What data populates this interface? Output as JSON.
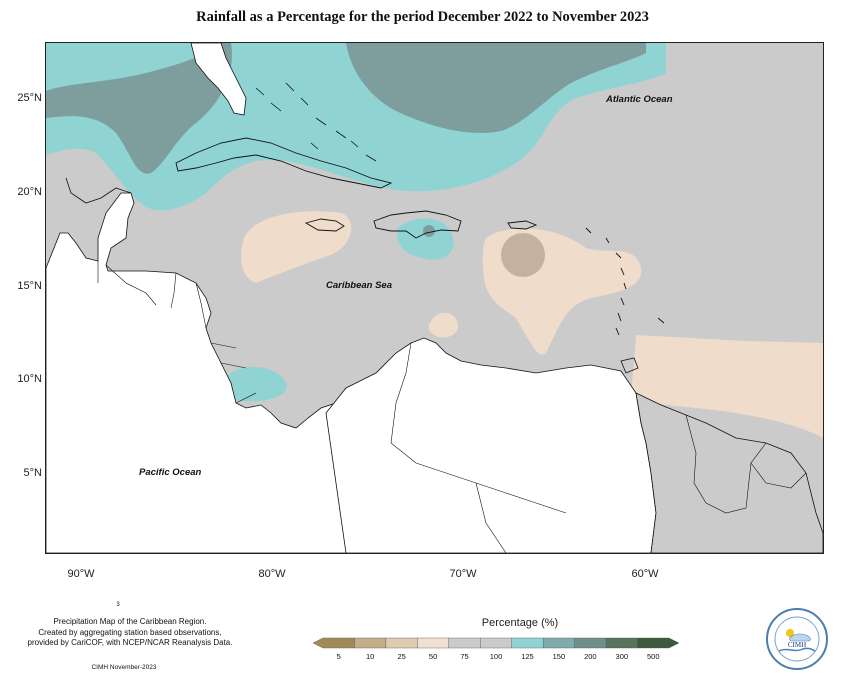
{
  "title": "Rainfall as a Percentage for the period December 2022 to November 2023",
  "map": {
    "lat_ticks": [
      "25°N",
      "20°N",
      "15°N",
      "10°N",
      "5°N"
    ],
    "lon_ticks": [
      "90°W",
      "80°W",
      "70°W",
      "60°W"
    ],
    "labels": {
      "atlantic": "Atlantic Ocean",
      "caribbean": "Caribbean Sea",
      "pacific": "Pacific Ocean"
    },
    "colors": {
      "background_normal": "#cbcbcb",
      "above_125": "#8fd3d3",
      "above_150": "#7e9e9e",
      "below_75": "#f0dccb",
      "below_50": "#c4b2a0",
      "land_outside": "#ffffff"
    }
  },
  "footnote": {
    "stray": "3",
    "line1": "Precipitation Map of the Caribbean Region.",
    "line2": "Created by aggregating station based observations,",
    "line3": "provided by CariCOF, with NCEP/NCAR Reanalysis Data.",
    "credit": "CIMH November-2023"
  },
  "legend": {
    "title": "Percentage (%)",
    "ticks": [
      "5",
      "10",
      "25",
      "50",
      "75",
      "100",
      "125",
      "150",
      "200",
      "300",
      "500"
    ],
    "colors": [
      "#a08a5a",
      "#c4ae88",
      "#dfcbb0",
      "#efe0d2",
      "#cbcbcb",
      "#cbcbcb",
      "#8fd3d3",
      "#7fabab",
      "#6e8f8a",
      "#58735e",
      "#3e5a3e"
    ]
  },
  "logo": {
    "text": "CIMH",
    "icon": "cimh-logo-icon"
  }
}
